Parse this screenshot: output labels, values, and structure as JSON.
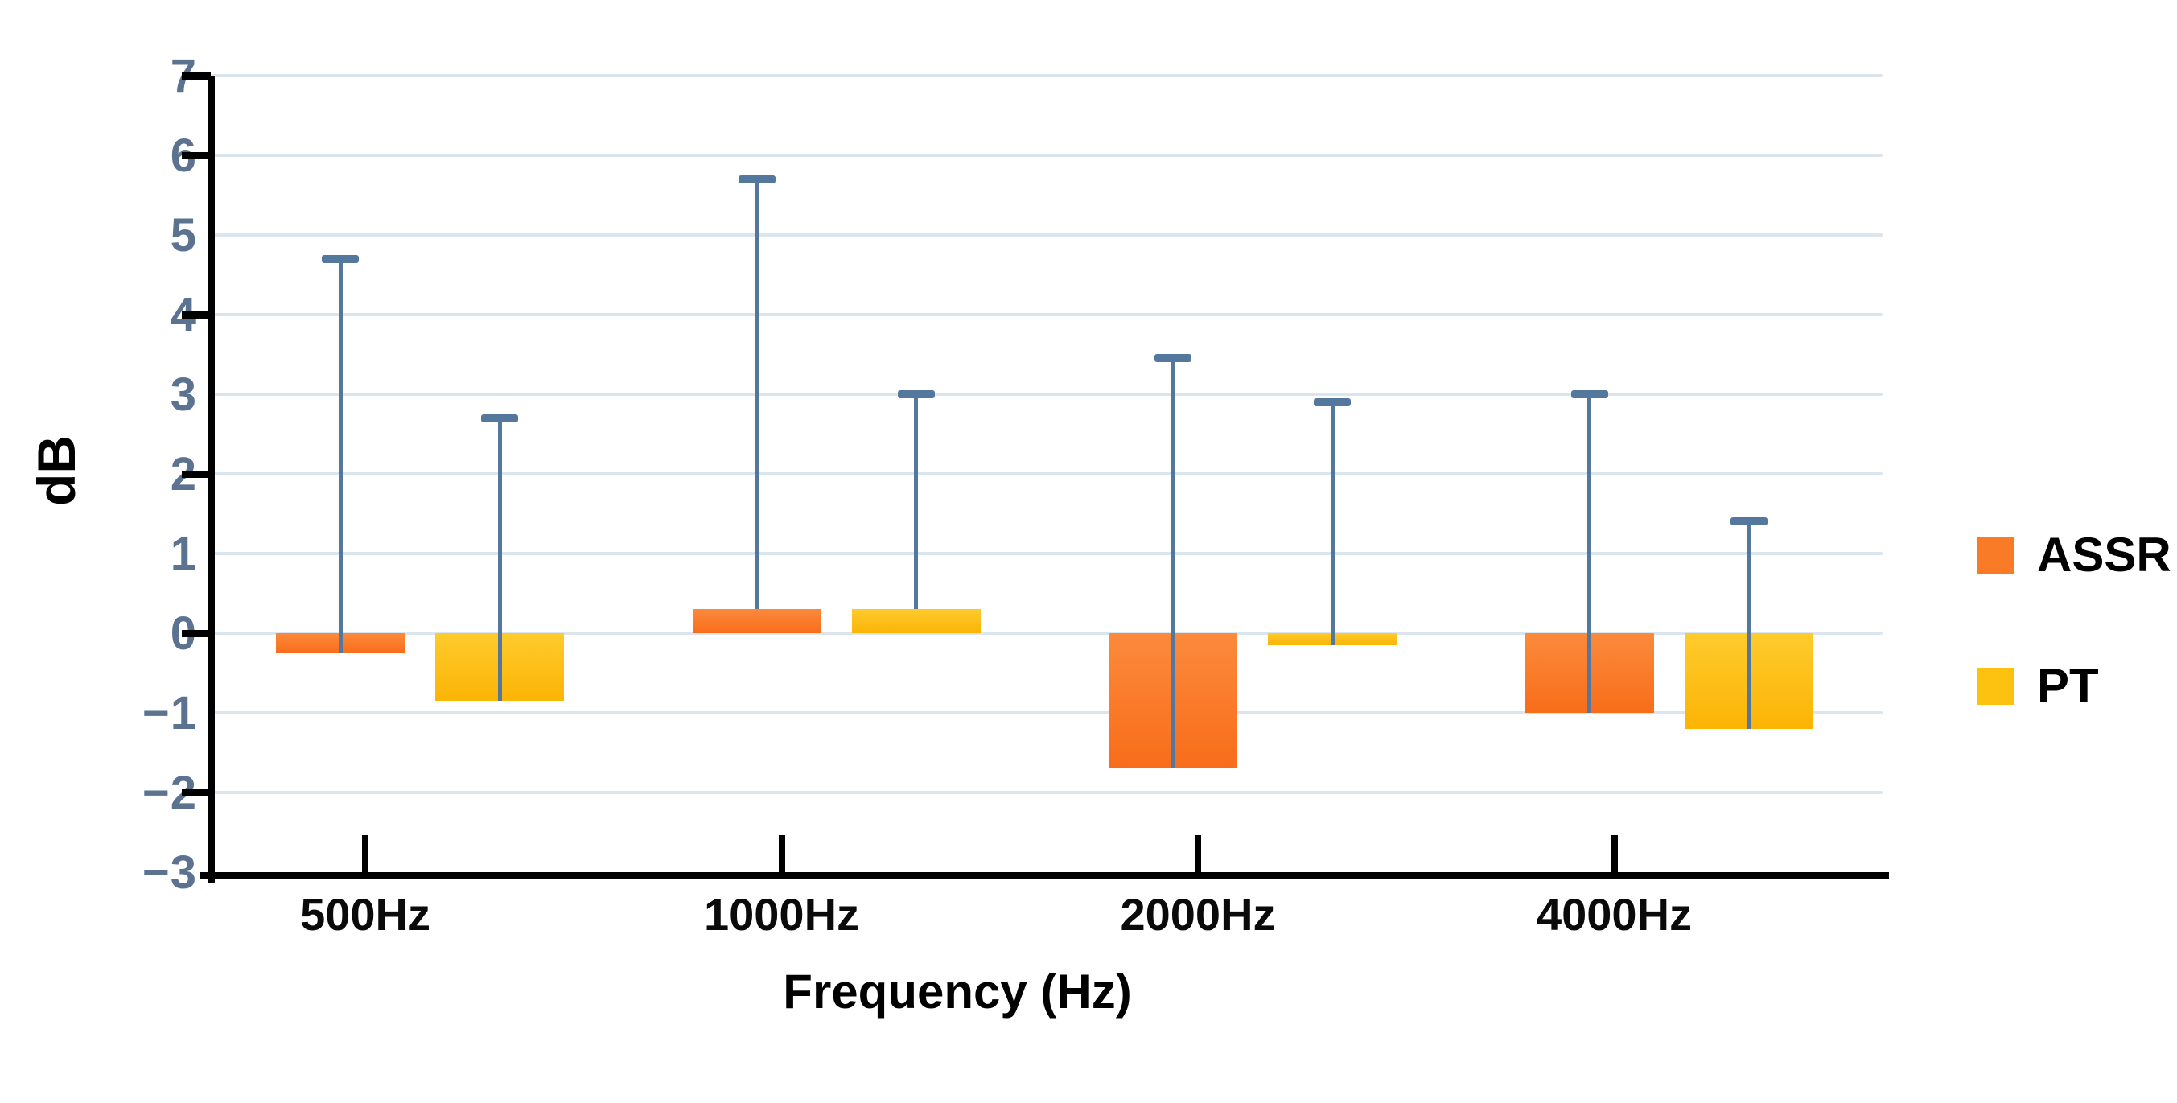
{
  "chart_data": {
    "type": "bar",
    "title": "",
    "categories": [
      "500Hz",
      "1000Hz",
      "2000Hz",
      "4000Hz"
    ],
    "series": [
      {
        "name": "ASSR",
        "values": [
          -0.25,
          0.3,
          -1.7,
          -1.0
        ],
        "error_bar_top": [
          4.7,
          5.7,
          3.45,
          3.0
        ]
      },
      {
        "name": "PT",
        "values": [
          -0.85,
          0.3,
          -0.15,
          -1.2
        ],
        "error_bar_top": [
          2.7,
          3.0,
          2.9,
          1.4
        ]
      }
    ],
    "xlabel": "Frequency (Hz)",
    "ylabel": "dB",
    "ylim": [
      -3,
      7
    ],
    "ytick_labels": [
      7,
      6,
      5,
      4,
      3,
      2,
      1,
      0,
      -1,
      -2,
      -3
    ],
    "y_axis_tick_marks_at": [
      7,
      6,
      4,
      2,
      0,
      -2
    ],
    "grid": true,
    "gridlines_at": [
      7,
      6,
      5,
      4,
      3,
      2,
      1,
      0,
      -1,
      -2
    ],
    "error_bars": "upper-only",
    "legend_position": "right"
  },
  "legend": {
    "items": [
      {
        "label": "ASSR"
      },
      {
        "label": "PT"
      }
    ]
  },
  "colors": {
    "assr_main": "#f97b28",
    "assr_light": "#fb8a3c",
    "assr_dark": "#f86d1a",
    "pt_main": "#fdc110",
    "pt_light": "#fecb2d",
    "pt_dark": "#fcb405",
    "error_bar": "#54779e",
    "gridline": "#dbe5ee",
    "axis": "#000000",
    "y_number": "#5b7391",
    "background": "#ffffff"
  }
}
